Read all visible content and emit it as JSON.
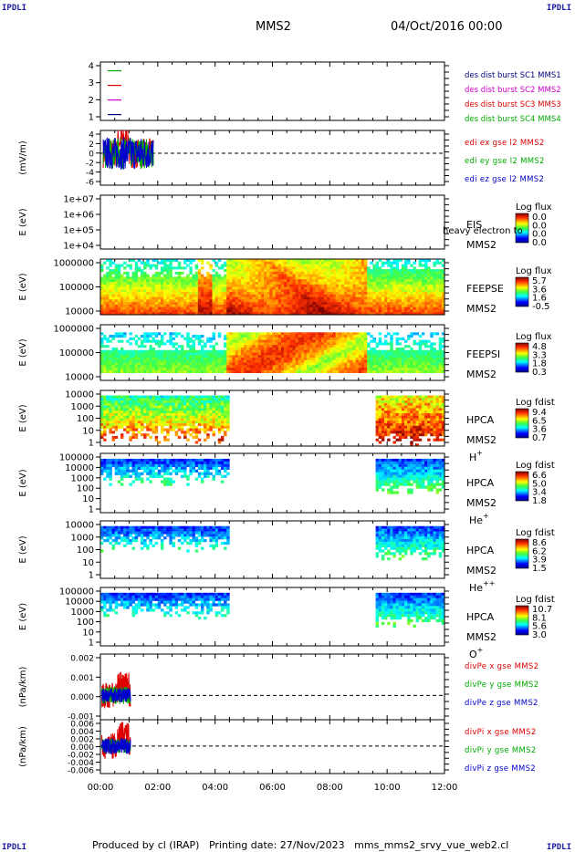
{
  "corners": {
    "tl": "IPDLI",
    "tr": "IPDLI",
    "bl": "IPDLI",
    "br": "IPDLI"
  },
  "header": {
    "spacecraft": "MMS2",
    "datetime": "04/Oct/2016 00:00"
  },
  "footer": {
    "text": "Produced by cl (IRAP)   Printing date: 27/Nov/2023   mms_mms2_srvy_vue_web2.cl"
  },
  "time_axis": {
    "ticks": [
      "00:00",
      "02:00",
      "04:00",
      "06:00",
      "08:00",
      "10:00",
      "12:00"
    ],
    "range_hours": [
      0,
      12
    ]
  },
  "colors": {
    "c1": "#000080",
    "c2": "#cc00cc",
    "c3": "#dd0000",
    "c4": "#00aa00",
    "red": "#dd0000",
    "green": "#00aa00",
    "blue": "#0000cc"
  },
  "chart_data": [
    {
      "type": "line",
      "id": "burst",
      "ylim": [
        0.6,
        4.6
      ],
      "yticks": [
        "1",
        "2",
        "3",
        "4"
      ],
      "series": [
        {
          "name": "des dist burst SC1 MMS1",
          "color": "#000080",
          "y": 1.0
        },
        {
          "name": "des dist burst SC2 MMS2",
          "color": "#cc00cc",
          "y": 2.0
        },
        {
          "name": "des dist burst SC3 MMS3",
          "color": "#dd0000",
          "y": 3.0
        },
        {
          "name": "des dist burst SC4 MMS4",
          "color": "#00aa00",
          "y": 4.0
        }
      ]
    },
    {
      "type": "line",
      "id": "edi",
      "ylabel": "(mV/m)",
      "ylim": [
        -7,
        5
      ],
      "yticks": [
        "4",
        "2",
        "0",
        "-2",
        "-4",
        "-6"
      ],
      "yticks_overlap": [
        "3",
        "1",
        "-1",
        "-3"
      ],
      "series": [
        {
          "name": "edi ex gse l2 MMS2",
          "color": "#dd0000"
        },
        {
          "name": "edi ey gse l2 MMS2",
          "color": "#00aa00"
        },
        {
          "name": "edi ez gse l2 MMS2",
          "color": "#0000cc"
        }
      ],
      "data_hours": [
        0.1,
        1.85
      ]
    },
    {
      "type": "heatmap",
      "id": "eis",
      "ylabel": "E (eV)",
      "yticks": [
        "1e+07",
        "1e+06",
        "1e+05",
        "1e+04"
      ],
      "labels": [
        "EIS",
        "MMS2"
      ],
      "overlay": "heavy electron to",
      "colorbar": {
        "title": "Log flux",
        "ticks": [
          "0.0",
          "0.0",
          "0.0",
          "0.0"
        ]
      }
    },
    {
      "type": "heatmap",
      "id": "feepse",
      "ylabel": "E (eV)",
      "yticks": [
        "1000000",
        "100000",
        "10000"
      ],
      "labels": [
        "FEEPSE",
        "MMS2"
      ],
      "colorbar": {
        "title": "Log flux",
        "ticks": [
          "5.7",
          "3.6",
          "1.6",
          "-0.5"
        ]
      }
    },
    {
      "type": "heatmap",
      "id": "feepsi",
      "ylabel": "E (eV)",
      "yticks": [
        "1000000",
        "100000",
        "10000"
      ],
      "labels": [
        "FEEPSI",
        "MMS2"
      ],
      "colorbar": {
        "title": "Log flux",
        "ticks": [
          "4.8",
          "3.3",
          "1.8",
          "0.3"
        ]
      }
    },
    {
      "type": "heatmap",
      "id": "hpca_h",
      "ylabel": "E (eV)",
      "yticks": [
        "10000",
        "1000",
        "100",
        "10",
        "1"
      ],
      "labels": [
        "HPCA",
        "MMS2"
      ],
      "species": "H",
      "species_sup": "+",
      "colorbar": {
        "title": "Log fdist",
        "ticks": [
          "9.4",
          "6.5",
          "3.6",
          "0.7"
        ]
      }
    },
    {
      "type": "heatmap",
      "id": "hpca_he",
      "ylabel": "E (eV)",
      "yticks": [
        "100000",
        "10000",
        "1000",
        "100",
        "10",
        "1"
      ],
      "labels": [
        "HPCA",
        "MMS2"
      ],
      "species": "He",
      "species_sup": "+",
      "colorbar": {
        "title": "Log fdist",
        "ticks": [
          "6.6",
          "5.0",
          "3.4",
          "1.8"
        ]
      }
    },
    {
      "type": "heatmap",
      "id": "hpca_he2",
      "ylabel": "E (eV)",
      "yticks": [
        "10000",
        "1000",
        "100",
        "10",
        "1"
      ],
      "labels": [
        "HPCA",
        "MMS2"
      ],
      "species": "He",
      "species_sup": "++",
      "colorbar": {
        "title": "Log fdist",
        "ticks": [
          "8.6",
          "6.2",
          "3.9",
          "1.5"
        ]
      }
    },
    {
      "type": "heatmap",
      "id": "hpca_o",
      "ylabel": "E (eV)",
      "yticks": [
        "100000",
        "10000",
        "1000",
        "100",
        "10",
        "1"
      ],
      "labels": [
        "HPCA",
        "MMS2"
      ],
      "species": "O",
      "species_sup": "+",
      "colorbar": {
        "title": "Log fdist",
        "ticks": [
          "10.7",
          "8.1",
          "5.6",
          "3.0"
        ]
      }
    },
    {
      "type": "line",
      "id": "divpe",
      "ylabel": "(nPa/km)",
      "ylim": [
        -0.0017,
        0.0029
      ],
      "yticks": [
        "0.002",
        "0.001",
        "0.000",
        "-0.001"
      ],
      "series": [
        {
          "name": "divPe x gse MMS2",
          "color": "#dd0000"
        },
        {
          "name": "divPe y gse MMS2",
          "color": "#00aa00"
        },
        {
          "name": "divPe z gse MMS2",
          "color": "#0000cc"
        }
      ],
      "data_hours": [
        0.05,
        1.05
      ]
    },
    {
      "type": "line",
      "id": "divpi",
      "ylabel": "(nPa/km)",
      "ylim": [
        -0.0075,
        0.0072
      ],
      "yticks": [
        "0.006",
        "0.004",
        "0.002",
        "0.000",
        "-0.002",
        "-0.004",
        "-0.006"
      ],
      "series": [
        {
          "name": "divPi x gse MMS2",
          "color": "#dd0000"
        },
        {
          "name": "divPi y gse MMS2",
          "color": "#00aa00"
        },
        {
          "name": "divPi z gse MMS2",
          "color": "#0000cc"
        }
      ],
      "data_hours": [
        0.05,
        1.05
      ]
    }
  ]
}
